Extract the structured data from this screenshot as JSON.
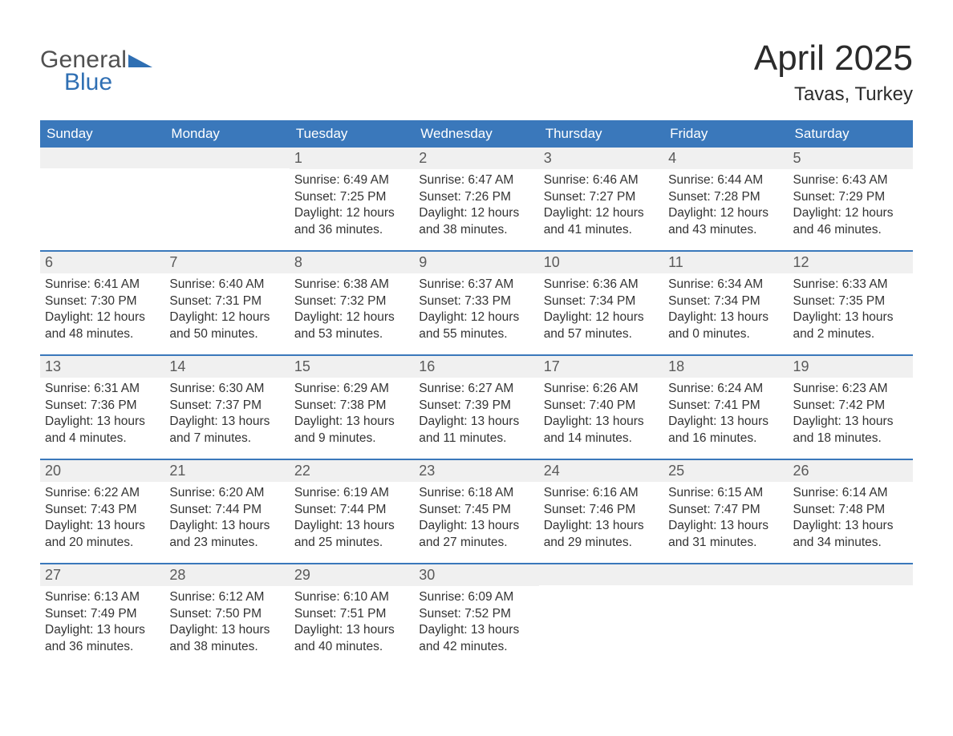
{
  "brand": {
    "word1": "General",
    "word2": "Blue",
    "word1_color": "#505050",
    "word2_color": "#2f6fb3",
    "tri_color": "#2f6fb3"
  },
  "title": "April 2025",
  "subtitle": "Tavas, Turkey",
  "colors": {
    "header_bg": "#3a78bb",
    "header_fg": "#ffffff",
    "daynum_bg": "#f0f0f0",
    "daynum_fg": "#5a5a5a",
    "body_fg": "#333333",
    "week_border": "#3a78bb",
    "page_bg": "#ffffff"
  },
  "fonts": {
    "title_size_pt": 33,
    "subtitle_size_pt": 18,
    "dow_size_pt": 13,
    "daynum_size_pt": 13,
    "body_size_pt": 11.5
  },
  "dow": [
    "Sunday",
    "Monday",
    "Tuesday",
    "Wednesday",
    "Thursday",
    "Friday",
    "Saturday"
  ],
  "weeks": [
    [
      {
        "n": "",
        "sunrise": "",
        "sunset": "",
        "daylight": ""
      },
      {
        "n": "",
        "sunrise": "",
        "sunset": "",
        "daylight": ""
      },
      {
        "n": "1",
        "sunrise": "Sunrise: 6:49 AM",
        "sunset": "Sunset: 7:25 PM",
        "daylight": "Daylight: 12 hours and 36 minutes."
      },
      {
        "n": "2",
        "sunrise": "Sunrise: 6:47 AM",
        "sunset": "Sunset: 7:26 PM",
        "daylight": "Daylight: 12 hours and 38 minutes."
      },
      {
        "n": "3",
        "sunrise": "Sunrise: 6:46 AM",
        "sunset": "Sunset: 7:27 PM",
        "daylight": "Daylight: 12 hours and 41 minutes."
      },
      {
        "n": "4",
        "sunrise": "Sunrise: 6:44 AM",
        "sunset": "Sunset: 7:28 PM",
        "daylight": "Daylight: 12 hours and 43 minutes."
      },
      {
        "n": "5",
        "sunrise": "Sunrise: 6:43 AM",
        "sunset": "Sunset: 7:29 PM",
        "daylight": "Daylight: 12 hours and 46 minutes."
      }
    ],
    [
      {
        "n": "6",
        "sunrise": "Sunrise: 6:41 AM",
        "sunset": "Sunset: 7:30 PM",
        "daylight": "Daylight: 12 hours and 48 minutes."
      },
      {
        "n": "7",
        "sunrise": "Sunrise: 6:40 AM",
        "sunset": "Sunset: 7:31 PM",
        "daylight": "Daylight: 12 hours and 50 minutes."
      },
      {
        "n": "8",
        "sunrise": "Sunrise: 6:38 AM",
        "sunset": "Sunset: 7:32 PM",
        "daylight": "Daylight: 12 hours and 53 minutes."
      },
      {
        "n": "9",
        "sunrise": "Sunrise: 6:37 AM",
        "sunset": "Sunset: 7:33 PM",
        "daylight": "Daylight: 12 hours and 55 minutes."
      },
      {
        "n": "10",
        "sunrise": "Sunrise: 6:36 AM",
        "sunset": "Sunset: 7:34 PM",
        "daylight": "Daylight: 12 hours and 57 minutes."
      },
      {
        "n": "11",
        "sunrise": "Sunrise: 6:34 AM",
        "sunset": "Sunset: 7:34 PM",
        "daylight": "Daylight: 13 hours and 0 minutes."
      },
      {
        "n": "12",
        "sunrise": "Sunrise: 6:33 AM",
        "sunset": "Sunset: 7:35 PM",
        "daylight": "Daylight: 13 hours and 2 minutes."
      }
    ],
    [
      {
        "n": "13",
        "sunrise": "Sunrise: 6:31 AM",
        "sunset": "Sunset: 7:36 PM",
        "daylight": "Daylight: 13 hours and 4 minutes."
      },
      {
        "n": "14",
        "sunrise": "Sunrise: 6:30 AM",
        "sunset": "Sunset: 7:37 PM",
        "daylight": "Daylight: 13 hours and 7 minutes."
      },
      {
        "n": "15",
        "sunrise": "Sunrise: 6:29 AM",
        "sunset": "Sunset: 7:38 PM",
        "daylight": "Daylight: 13 hours and 9 minutes."
      },
      {
        "n": "16",
        "sunrise": "Sunrise: 6:27 AM",
        "sunset": "Sunset: 7:39 PM",
        "daylight": "Daylight: 13 hours and 11 minutes."
      },
      {
        "n": "17",
        "sunrise": "Sunrise: 6:26 AM",
        "sunset": "Sunset: 7:40 PM",
        "daylight": "Daylight: 13 hours and 14 minutes."
      },
      {
        "n": "18",
        "sunrise": "Sunrise: 6:24 AM",
        "sunset": "Sunset: 7:41 PM",
        "daylight": "Daylight: 13 hours and 16 minutes."
      },
      {
        "n": "19",
        "sunrise": "Sunrise: 6:23 AM",
        "sunset": "Sunset: 7:42 PM",
        "daylight": "Daylight: 13 hours and 18 minutes."
      }
    ],
    [
      {
        "n": "20",
        "sunrise": "Sunrise: 6:22 AM",
        "sunset": "Sunset: 7:43 PM",
        "daylight": "Daylight: 13 hours and 20 minutes."
      },
      {
        "n": "21",
        "sunrise": "Sunrise: 6:20 AM",
        "sunset": "Sunset: 7:44 PM",
        "daylight": "Daylight: 13 hours and 23 minutes."
      },
      {
        "n": "22",
        "sunrise": "Sunrise: 6:19 AM",
        "sunset": "Sunset: 7:44 PM",
        "daylight": "Daylight: 13 hours and 25 minutes."
      },
      {
        "n": "23",
        "sunrise": "Sunrise: 6:18 AM",
        "sunset": "Sunset: 7:45 PM",
        "daylight": "Daylight: 13 hours and 27 minutes."
      },
      {
        "n": "24",
        "sunrise": "Sunrise: 6:16 AM",
        "sunset": "Sunset: 7:46 PM",
        "daylight": "Daylight: 13 hours and 29 minutes."
      },
      {
        "n": "25",
        "sunrise": "Sunrise: 6:15 AM",
        "sunset": "Sunset: 7:47 PM",
        "daylight": "Daylight: 13 hours and 31 minutes."
      },
      {
        "n": "26",
        "sunrise": "Sunrise: 6:14 AM",
        "sunset": "Sunset: 7:48 PM",
        "daylight": "Daylight: 13 hours and 34 minutes."
      }
    ],
    [
      {
        "n": "27",
        "sunrise": "Sunrise: 6:13 AM",
        "sunset": "Sunset: 7:49 PM",
        "daylight": "Daylight: 13 hours and 36 minutes."
      },
      {
        "n": "28",
        "sunrise": "Sunrise: 6:12 AM",
        "sunset": "Sunset: 7:50 PM",
        "daylight": "Daylight: 13 hours and 38 minutes."
      },
      {
        "n": "29",
        "sunrise": "Sunrise: 6:10 AM",
        "sunset": "Sunset: 7:51 PM",
        "daylight": "Daylight: 13 hours and 40 minutes."
      },
      {
        "n": "30",
        "sunrise": "Sunrise: 6:09 AM",
        "sunset": "Sunset: 7:52 PM",
        "daylight": "Daylight: 13 hours and 42 minutes."
      },
      {
        "n": "",
        "sunrise": "",
        "sunset": "",
        "daylight": ""
      },
      {
        "n": "",
        "sunrise": "",
        "sunset": "",
        "daylight": ""
      },
      {
        "n": "",
        "sunrise": "",
        "sunset": "",
        "daylight": ""
      }
    ]
  ]
}
